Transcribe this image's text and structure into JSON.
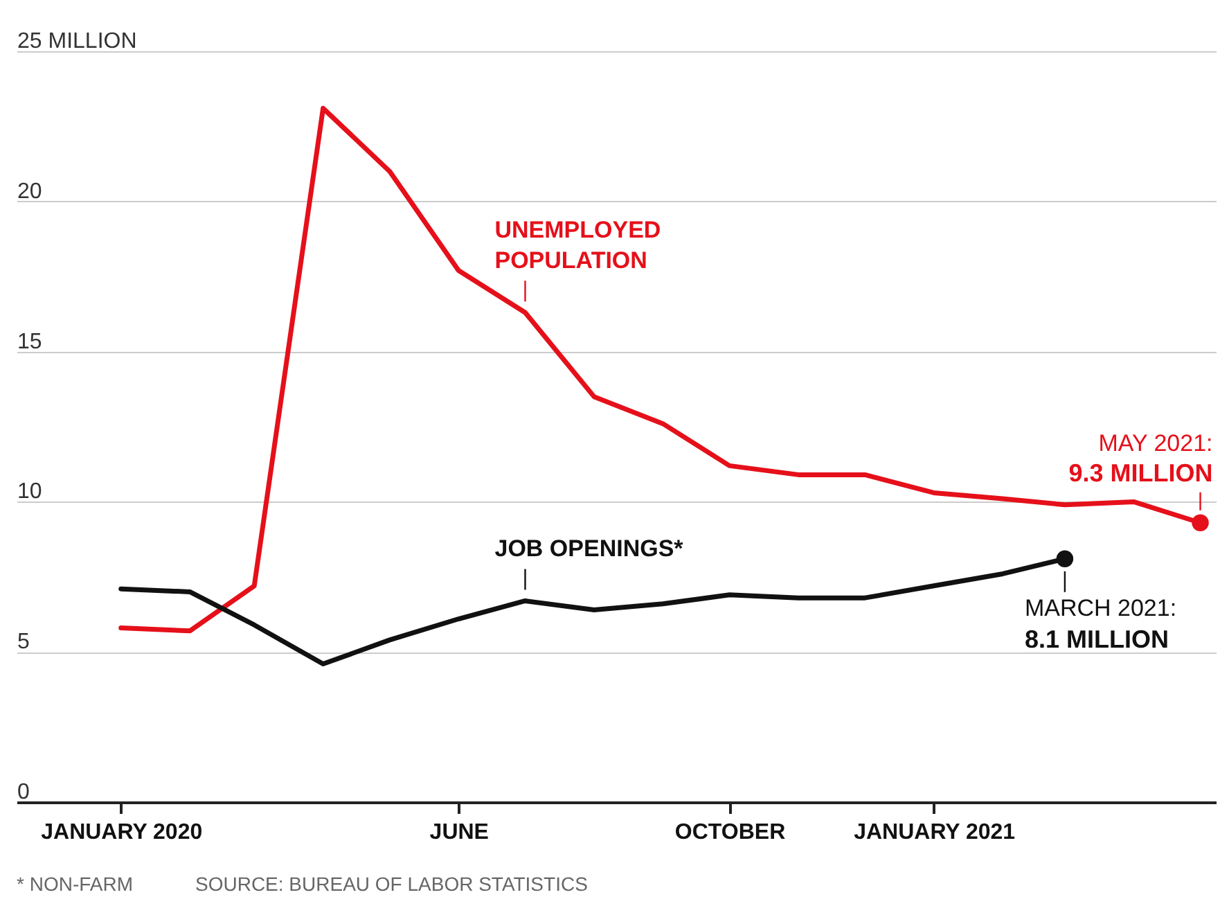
{
  "chart_data": {
    "type": "line",
    "x": [
      "2020-01",
      "2020-02",
      "2020-03",
      "2020-04",
      "2020-05",
      "2020-06",
      "2020-07",
      "2020-08",
      "2020-09",
      "2020-10",
      "2020-11",
      "2020-12",
      "2021-01",
      "2021-02",
      "2021-03",
      "2021-04",
      "2021-05"
    ],
    "series": [
      {
        "name": "UNEMPLOYED POPULATION",
        "color": "#e5101a",
        "values": [
          5.8,
          5.7,
          7.2,
          23.1,
          21.0,
          17.7,
          16.3,
          13.5,
          12.6,
          11.2,
          10.9,
          10.9,
          10.3,
          10.1,
          9.9,
          10.0,
          9.3
        ]
      },
      {
        "name": "JOB OPENINGS*",
        "color": "#111111",
        "x": [
          "2020-01",
          "2020-02",
          "2020-03",
          "2020-04",
          "2020-05",
          "2020-06",
          "2020-07",
          "2020-08",
          "2020-09",
          "2020-10",
          "2020-11",
          "2020-12",
          "2021-01",
          "2021-02",
          "2021-03"
        ],
        "values": [
          7.1,
          7.0,
          5.9,
          4.6,
          5.4,
          6.1,
          6.7,
          6.4,
          6.6,
          6.9,
          6.8,
          6.8,
          7.2,
          7.6,
          8.1
        ]
      }
    ],
    "ylim": [
      0,
      25
    ],
    "yticks": [
      0,
      5,
      10,
      15,
      20,
      {
        "value": 25,
        "label": "25 MILLION"
      }
    ],
    "xlim": [
      "2019-11-15",
      "2021-05-08"
    ],
    "xticks": [
      {
        "value": "2020-01",
        "label": "JANUARY 2020"
      },
      {
        "value": "2020-06",
        "label": "JUNE"
      },
      {
        "value": "2020-10",
        "label": "OCTOBER"
      },
      {
        "value": "2021-01",
        "label": "JANUARY 2021"
      }
    ],
    "grid": "y",
    "annotations": [
      {
        "text": "MAY 2021:\n9.3 MILLION",
        "x": "2021-05",
        "y": 9.3
      },
      {
        "text": "MARCH 2021:\n8.1 MILLION",
        "x": "2021-03",
        "y": 8.1
      },
      "* NON-FARM",
      "SOURCE: BUREAU OF LABOR STATISTICS"
    ]
  }
}
